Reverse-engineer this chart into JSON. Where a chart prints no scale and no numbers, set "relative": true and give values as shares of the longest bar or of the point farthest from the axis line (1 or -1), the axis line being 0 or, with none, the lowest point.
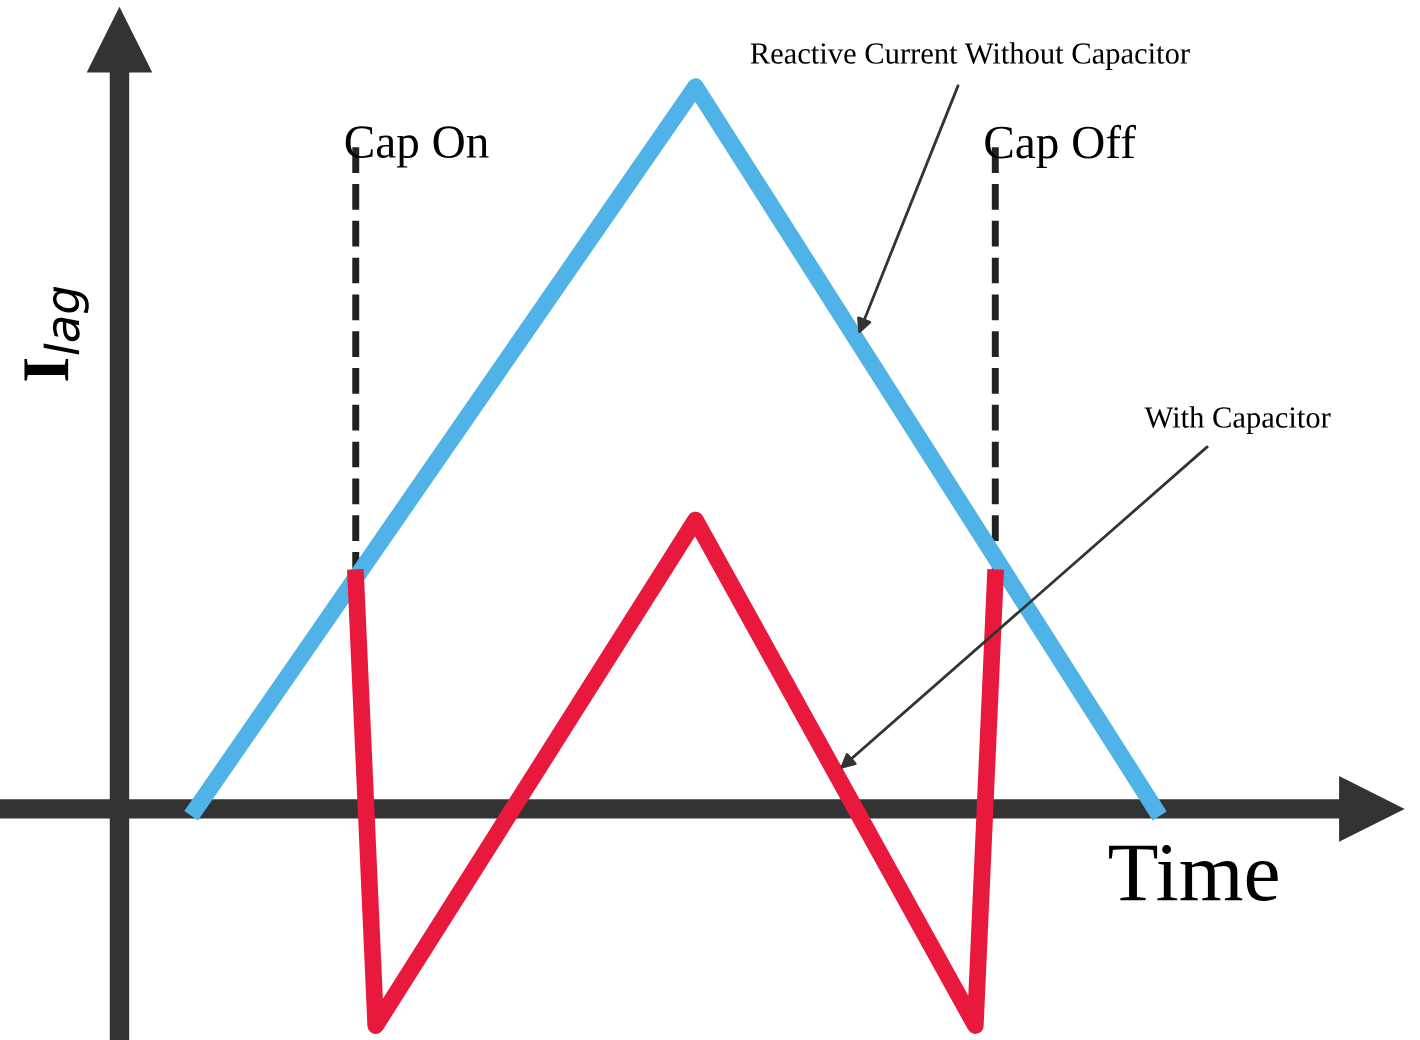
{
  "chart_data": {
    "type": "line",
    "relative": true,
    "xlabel": "Time",
    "ylabel": "I$_{lag}$",
    "tick_labels": false,
    "marker": "none",
    "line_style": "solid",
    "categories": [
      null,
      null,
      null,
      null,
      null,
      null,
      null,
      null,
      null,
      null,
      null,
      null,
      null,
      null,
      null,
      null,
      null,
      null,
      null,
      null,
      null,
      null,
      null,
      null,
      null,
      null,
      null,
      null,
      null,
      null,
      null,
      null,
      null,
      null,
      null,
      null,
      null,
      null,
      null,
      null,
      null,
      null,
      null,
      null,
      null,
      null,
      null,
      null,
      null
    ],
    "series": [
      {
        "name": "Reactive Current Without Capacitor",
        "color": "#4fb3e8",
        "values": [
          0,
          null,
          null,
          null,
          null,
          null,
          null,
          null,
          null,
          null,
          null,
          null,
          null,
          null,
          null,
          null,
          null,
          null,
          null,
          null,
          null,
          null,
          null,
          null,
          null,
          1,
          null,
          null,
          null,
          null,
          null,
          null,
          null,
          null,
          null,
          null,
          null,
          null,
          null,
          null,
          null,
          null,
          null,
          null,
          null,
          null,
          null,
          null,
          0
        ]
      },
      {
        "name": "With Capacitor",
        "color": "#e8193c",
        "values": [
          null,
          null,
          null,
          null,
          null,
          null,
          null,
          null,
          0.32,
          -0.3,
          null,
          null,
          null,
          null,
          null,
          null,
          null,
          null,
          null,
          null,
          null,
          null,
          null,
          null,
          null,
          0.4,
          null,
          null,
          null,
          null,
          null,
          null,
          null,
          null,
          null,
          null,
          null,
          null,
          null,
          -0.3,
          0.32,
          null,
          null,
          null,
          null,
          null,
          null,
          null,
          null
        ]
      }
    ],
    "annotations": [
      "Cap On",
      "Cap Off"
    ]
  }
}
